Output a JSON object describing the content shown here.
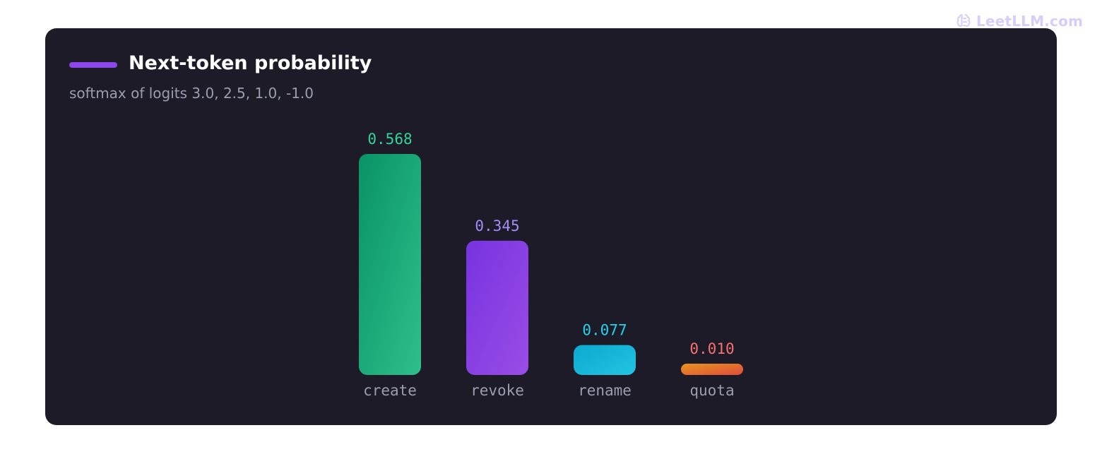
{
  "watermark": {
    "icon": "brain-icon",
    "text": "LeetLLM.com",
    "color": "#d9ccfb"
  },
  "chart_data": {
    "type": "bar",
    "title": "Next-token probability",
    "subtitle": "softmax of logits 3.0, 2.5, 1.0, -1.0",
    "categories": [
      "create",
      "revoke",
      "rename",
      "quota"
    ],
    "values": [
      0.568,
      0.345,
      0.077,
      0.01
    ],
    "value_labels": [
      "0.568",
      "0.345",
      "0.077",
      "0.010"
    ],
    "ylim": [
      0,
      0.568
    ],
    "grid": false,
    "legend_color": "#8b46ec",
    "colors": [
      {
        "from": "#0a9366",
        "to": "#2ebf8c",
        "label": "#34d399"
      },
      {
        "from": "#7833e0",
        "to": "#9a4de6",
        "label": "#a78bfa"
      },
      {
        "from": "#0ba9cf",
        "to": "#22c4e2",
        "label": "#22d3ee"
      },
      {
        "from": "#e8961e",
        "to": "#e04a3c",
        "label": "#f87171"
      }
    ]
  }
}
